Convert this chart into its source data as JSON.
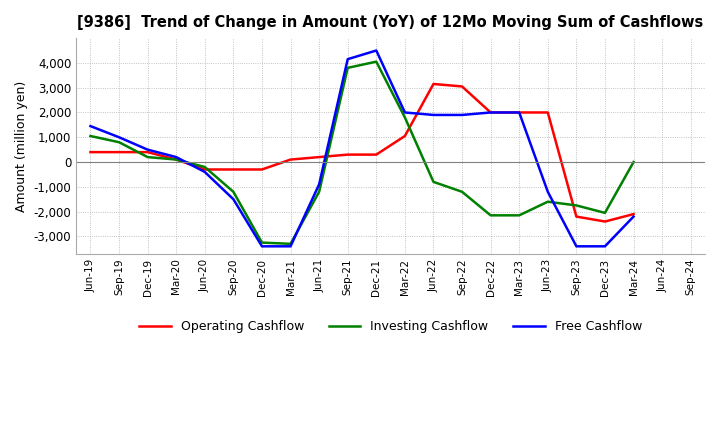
{
  "title": "[9386]  Trend of Change in Amount (YoY) of 12Mo Moving Sum of Cashflows",
  "ylabel": "Amount (million yen)",
  "x_labels": [
    "Jun-19",
    "Sep-19",
    "Dec-19",
    "Mar-20",
    "Jun-20",
    "Sep-20",
    "Dec-20",
    "Mar-21",
    "Jun-21",
    "Sep-21",
    "Dec-21",
    "Mar-22",
    "Jun-22",
    "Sep-22",
    "Dec-22",
    "Mar-23",
    "Jun-23",
    "Sep-23",
    "Dec-23",
    "Mar-24",
    "Jun-24",
    "Sep-24"
  ],
  "operating": [
    400,
    400,
    400,
    100,
    -300,
    -300,
    -300,
    100,
    200,
    300,
    300,
    1050,
    3150,
    3050,
    2000,
    2000,
    2000,
    -2200,
    -2400,
    -2100,
    null,
    null
  ],
  "investing": [
    1050,
    800,
    200,
    100,
    -200,
    -1200,
    -3250,
    -3300,
    -1200,
    3800,
    4050,
    1800,
    -800,
    -1200,
    -2150,
    -2150,
    -1600,
    -1750,
    -2050,
    0,
    null,
    null
  ],
  "free": [
    1450,
    1000,
    500,
    200,
    -400,
    -1500,
    -3400,
    -3400,
    -900,
    4150,
    4500,
    2000,
    1900,
    1900,
    2000,
    2000,
    -1200,
    -3400,
    -3400,
    -2200,
    null,
    null
  ],
  "ylim": [
    -3700,
    5000
  ],
  "yticks": [
    -3000,
    -2000,
    -1000,
    0,
    1000,
    2000,
    3000,
    4000
  ],
  "operating_color": "#ff0000",
  "investing_color": "#008000",
  "free_color": "#0000ff",
  "bg_color": "#ffffff",
  "grid_color": "#b0b0b0"
}
